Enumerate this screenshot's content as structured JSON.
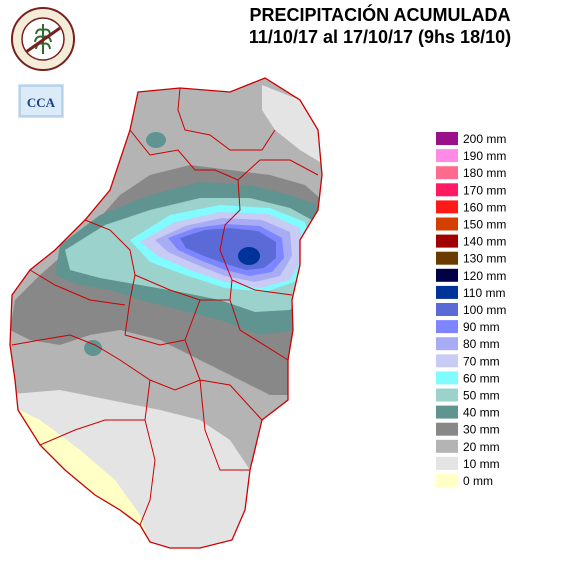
{
  "header": {
    "title": "PRECIPITACIÓN ACUMULADA",
    "period": "11/10/17 al 17/10/17  (9hs 18/10)"
  },
  "logos": {
    "seal_text": "BOLSA DE CEREALES DE ENTRE RIOS",
    "seal_colors": {
      "ring": "#7a1f1f",
      "fill": "#f2ecd8",
      "accent": "#2f6b2f"
    },
    "cca_text": "CCA",
    "cca_colors": {
      "bg": "#cfe3f5",
      "text": "#1d3f8f"
    }
  },
  "legend": {
    "items": [
      {
        "label": "200 mm",
        "color": "#9a0f8a"
      },
      {
        "label": "190 mm",
        "color": "#ff8be6"
      },
      {
        "label": "180 mm",
        "color": "#ff6b8f"
      },
      {
        "label": "170 mm",
        "color": "#ff1a63"
      },
      {
        "label": "160 mm",
        "color": "#ff1a1a"
      },
      {
        "label": "150 mm",
        "color": "#d33f00"
      },
      {
        "label": "140 mm",
        "color": "#a00000"
      },
      {
        "label": "130 mm",
        "color": "#6b3a00"
      },
      {
        "label": "120 mm",
        "color": "#000045"
      },
      {
        "label": "110 mm",
        "color": "#003399"
      },
      {
        "label": "100 mm",
        "color": "#5a6bd8"
      },
      {
        "label": "90 mm",
        "color": "#7d86ff"
      },
      {
        "label": "80 mm",
        "color": "#a7acf5"
      },
      {
        "label": "70 mm",
        "color": "#c8cbf4"
      },
      {
        "label": "60 mm",
        "color": "#80fbff"
      },
      {
        "label": "50 mm",
        "color": "#9cd2cc"
      },
      {
        "label": "40 mm",
        "color": "#5f9490"
      },
      {
        "label": "30 mm",
        "color": "#888888"
      },
      {
        "label": "20 mm",
        "color": "#b4b4b4"
      },
      {
        "label": "10 mm",
        "color": "#e4e4e4"
      },
      {
        "label": "0 mm",
        "color": "#ffffc6"
      }
    ]
  }
}
